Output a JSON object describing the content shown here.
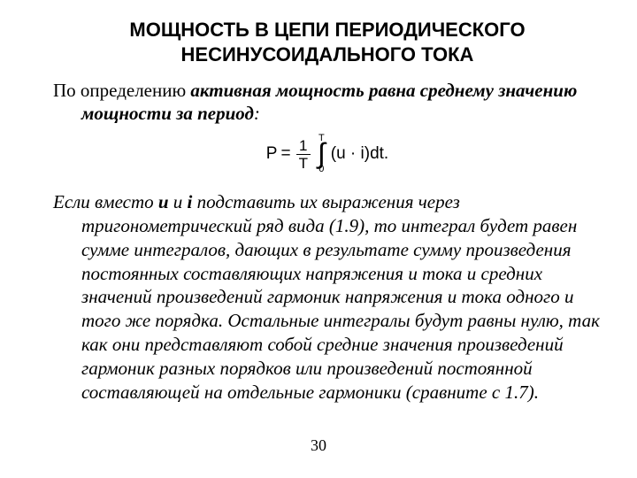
{
  "title": {
    "line1": "МОЩНОСТЬ В ЦЕПИ ПЕРИОДИЧЕСКОГО",
    "line2": "НЕСИНУСОИДАЛЬНОГО ТОКА"
  },
  "para1": {
    "lead": "По определению ",
    "emph": "активная мощность равна среднему значению мощности за период",
    "tail": ":"
  },
  "formula": {
    "P": "P",
    "eq": "=",
    "frac_num": "1",
    "frac_den": "T",
    "int_top": "T",
    "int_sym": "∫",
    "int_bot": "0",
    "integrand": "(u · i)dt."
  },
  "para2": {
    "t1": "Если вместо ",
    "u": "u",
    "t2": " и ",
    "i": "i",
    "t3": " подставить их выражения через тригонометрический ряд вида (1.9), то интеграл будет равен сумме интегралов, дающих в результате сумму произведения постоянных составляющих напряжения и тока и средних значений произведений гармоник напряжения и тока одного и того же порядка. Остальные интегралы будут равны нулю, так как они представляют собой средние значения произведений гармоник разных порядков или произведений постоянной составляющей на отдельные гармоники (сравните с 1.7)."
  },
  "page_number": "30",
  "colors": {
    "background": "#ffffff",
    "text": "#000000"
  },
  "typography": {
    "title_font": "Arial",
    "title_size_pt": 22,
    "body_font": "Times New Roman",
    "body_size_pt": 21
  }
}
